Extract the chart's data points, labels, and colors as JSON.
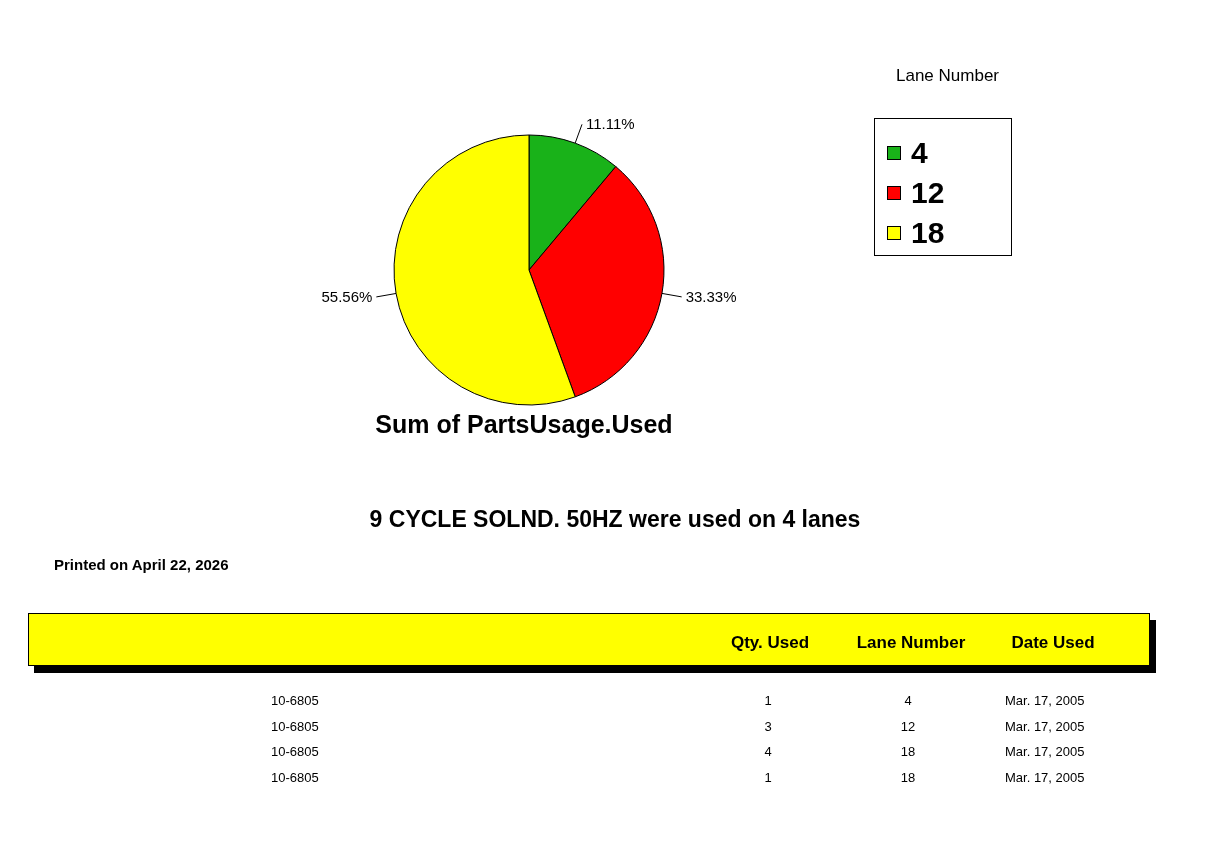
{
  "chart_data": [
    {
      "type": "pie",
      "title": "Sum of PartsUsage.Used",
      "legend_title": "Lane Number",
      "legend": "right",
      "categories": [
        "4",
        "12",
        "18"
      ],
      "values": [
        11.11,
        33.33,
        55.56
      ],
      "colors": [
        "#19b219",
        "#ff0000",
        "#ffff00"
      ],
      "value_labels": [
        "11.11%",
        "33.33%",
        "55.56%"
      ]
    },
    {
      "type": "other",
      "title": "9 CYCLE SOLND. 50HZ were used on 4 lanes",
      "annotations": [
        "Printed on April 22, 2026",
        "Qty. Used",
        "Lane Number",
        "Date Used",
        "10-6805",
        "1",
        "4",
        "Mar. 17, 2005",
        "10-6805",
        "3",
        "12",
        "Mar. 17, 2005",
        "10-6805",
        "4",
        "18",
        "Mar. 17, 2005",
        "10-6805",
        "1",
        "18",
        "Mar. 17, 2005"
      ]
    }
  ]
}
